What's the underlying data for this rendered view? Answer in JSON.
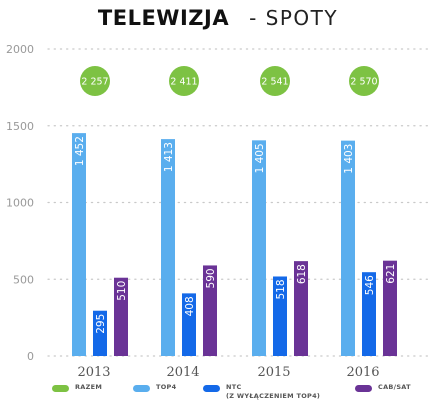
{
  "header": {
    "title": "TELEWIZJA",
    "subtitle": "- SPOTY"
  },
  "chart_data": {
    "type": "bar",
    "title": "TELEWIZJA - SPOTY",
    "xlabel": "",
    "ylabel": "",
    "categories": [
      "2013",
      "2014",
      "2015",
      "2016"
    ],
    "ylim": [
      0,
      2000
    ],
    "yticks": [
      0,
      500,
      1000,
      1500,
      2000
    ],
    "grid": true,
    "legend_position": "bottom",
    "series": [
      {
        "name": "RAZEM",
        "color": "#7dc243",
        "display": "badge",
        "values": [
          2257,
          2411,
          2541,
          2570
        ],
        "labels": [
          "2 257",
          "2 411",
          "2 541",
          "2 570"
        ]
      },
      {
        "name": "TOP4",
        "color": "#5aaeee",
        "display": "bar",
        "values": [
          1452,
          1413,
          1405,
          1403
        ],
        "labels": [
          "1 452",
          "1 413",
          "1 405",
          "1 403"
        ]
      },
      {
        "name": "NTC",
        "name_line2": "(Z WYŁĄCZENIEM TOP4)",
        "color": "#1469e8",
        "display": "bar",
        "values": [
          295,
          408,
          518,
          546
        ],
        "labels": [
          "295",
          "408",
          "518",
          "546"
        ]
      },
      {
        "name": "CAB/SAT",
        "color": "#6a3396",
        "display": "bar",
        "values": [
          510,
          590,
          618,
          621
        ],
        "labels": [
          "510",
          "590",
          "618",
          "621"
        ]
      }
    ]
  }
}
